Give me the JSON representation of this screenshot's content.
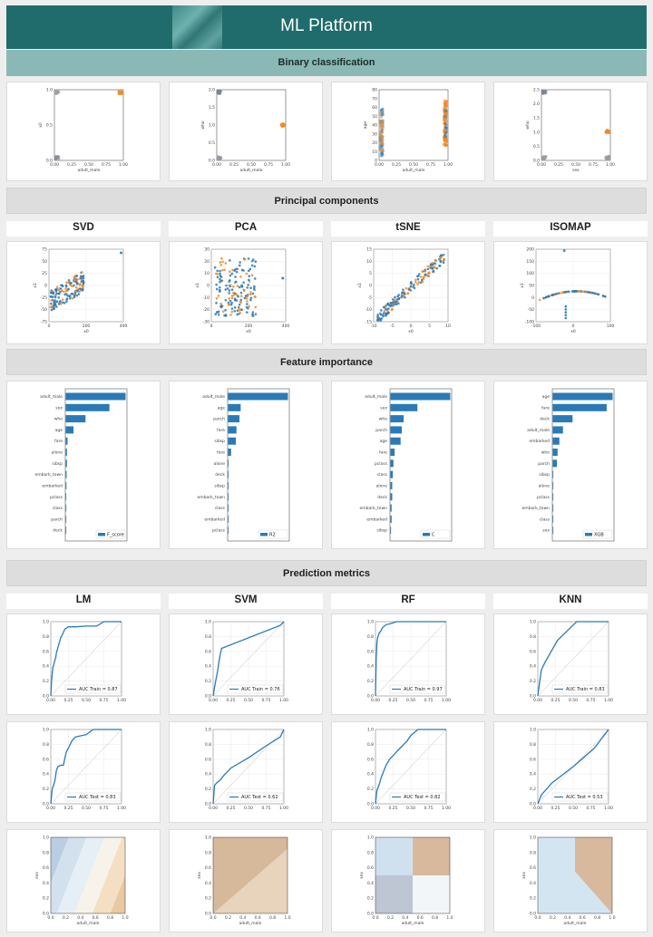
{
  "header": {
    "title": "ML Platform"
  },
  "sections": {
    "binary": "Binary classification",
    "pcs": "Principal components",
    "fi": "Feature importance",
    "pm": "Prediction metrics"
  },
  "pc_labels": [
    "SVD",
    "PCA",
    "tSNE",
    "ISOMAP"
  ],
  "model_labels": [
    "LM",
    "SVM",
    "RF",
    "KNN"
  ],
  "scatter_axes": [
    {
      "xlabel": "adult_male",
      "ylabel": "x0",
      "xticks": [
        "0.00",
        "0.25",
        "0.50",
        "0.75",
        "1.00"
      ],
      "yticks": [
        "0.0",
        "0.5",
        "1.0"
      ]
    },
    {
      "xlabel": "adult_male",
      "ylabel": "who",
      "xticks": [
        "0.00",
        "0.25",
        "0.50",
        "0.75",
        "1.00"
      ],
      "yticks": [
        "0.0",
        "0.5",
        "1.0",
        "1.5",
        "2.0"
      ]
    },
    {
      "xlabel": "adult_male",
      "ylabel": "age",
      "xticks": [
        "0.00",
        "0.25",
        "0.50",
        "0.75",
        "1.00"
      ],
      "yticks": [
        "0",
        "10",
        "20",
        "30",
        "40",
        "50",
        "60",
        "70",
        "80"
      ]
    },
    {
      "xlabel": "sex",
      "ylabel": "who",
      "xticks": [
        "0.00",
        "0.25",
        "0.50",
        "0.75",
        "1.00"
      ],
      "yticks": [
        "0.0",
        "0.5",
        "1.0",
        "1.5",
        "2.0",
        "2.5"
      ]
    }
  ],
  "pc_axes": [
    {
      "xlabel": "x0",
      "ylabel": "x1",
      "xticks": [
        "0",
        "200",
        "400"
      ],
      "yticks": [
        "-75",
        "-50",
        "-25",
        "0",
        "25",
        "50",
        "75"
      ]
    },
    {
      "xlabel": "x0",
      "ylabel": "x1",
      "xticks": [
        "0",
        "200",
        "400"
      ],
      "yticks": [
        "-30",
        "-20",
        "-10",
        "0",
        "10",
        "20",
        "30"
      ]
    },
    {
      "xlabel": "x0",
      "ylabel": "x1",
      "xticks": [
        "-10",
        "-5",
        "0",
        "5",
        "10"
      ],
      "yticks": [
        "-15",
        "-10",
        "-5",
        "0",
        "5",
        "10",
        "15"
      ]
    },
    {
      "xlabel": "x0",
      "ylabel": "x1",
      "xticks": [
        "-100",
        "0",
        "100"
      ],
      "yticks": [
        "-100",
        "-50",
        "0",
        "50",
        "100",
        "150",
        "200"
      ]
    }
  ],
  "roc_ticks": [
    "0.0",
    "0.2",
    "0.4",
    "0.6",
    "0.8",
    "1.0"
  ],
  "roc_axis_ticks": [
    "0.00",
    "0.25",
    "0.50",
    "0.75",
    "1.00"
  ],
  "boundary_axes": {
    "xlabel": "adult_male",
    "ylabel": "sex",
    "ticks": [
      "0.0",
      "0.2",
      "0.4",
      "0.6",
      "0.8",
      "1.0"
    ]
  },
  "chart_data": [
    {
      "type": "bar",
      "legend": "F_score",
      "categories": [
        "adult_male",
        "sex",
        "who",
        "age",
        "fare",
        "alone",
        "sibsp",
        "embark_town",
        "embarked",
        "pclass",
        "class",
        "parch",
        "deck"
      ],
      "values": [
        1.0,
        0.73,
        0.33,
        0.13,
        0.03,
        0.02,
        0.02,
        0.015,
        0.012,
        0.0,
        0.0,
        0.0,
        0.0
      ]
    },
    {
      "type": "bar",
      "legend": "R2",
      "categories": [
        "adult_male",
        "age",
        "parch",
        "fare",
        "sibsp",
        "fare",
        "alone",
        "deck",
        "sibsp",
        "embark_town",
        "class",
        "embarked",
        "pclass"
      ],
      "values": [
        1.0,
        0.21,
        0.19,
        0.14,
        0.13,
        0.05,
        0.0,
        0.0,
        0.0,
        0.0,
        0.0,
        0.0,
        0.0
      ]
    },
    {
      "type": "bar",
      "legend": "C",
      "categories": [
        "adult_male",
        "sex",
        "who",
        "parch",
        "age",
        "fare",
        "pclass",
        "class",
        "alone",
        "deck",
        "embark_town",
        "embarked",
        "sibsp"
      ],
      "values": [
        1.0,
        0.45,
        0.22,
        0.19,
        0.17,
        0.07,
        0.05,
        0.04,
        0.03,
        0.03,
        0.02,
        0.02,
        0.01
      ]
    },
    {
      "type": "bar",
      "legend": "XGB",
      "categories": [
        "age",
        "fare",
        "deck",
        "adult_male",
        "embarked",
        "who",
        "parch",
        "sibsp",
        "alone",
        "pclass",
        "embark_town",
        "class",
        "sex"
      ],
      "values": [
        1.0,
        0.9,
        0.33,
        0.17,
        0.11,
        0.08,
        0.07,
        0.0,
        0.0,
        0.0,
        0.0,
        0.0,
        0.0
      ]
    },
    {
      "type": "line",
      "name": "LM train",
      "legend": "AUC Train = 0.87",
      "x": [
        0,
        0.01,
        0.02,
        0.03,
        0.05,
        0.07,
        0.08,
        0.1,
        0.12,
        0.14,
        0.16,
        0.18,
        0.2,
        0.25,
        0.35,
        0.5,
        0.65,
        0.75,
        1.0
      ],
      "y": [
        0,
        0.2,
        0.3,
        0.38,
        0.45,
        0.52,
        0.58,
        0.65,
        0.72,
        0.78,
        0.82,
        0.86,
        0.9,
        0.93,
        0.93,
        0.94,
        0.94,
        1.0,
        1.0
      ]
    },
    {
      "type": "line",
      "name": "SVM train",
      "legend": "AUC Train = 0.76",
      "x": [
        0,
        0.02,
        0.04,
        0.06,
        0.08,
        0.1,
        0.12,
        0.95,
        1.0
      ],
      "y": [
        0,
        0.12,
        0.22,
        0.32,
        0.44,
        0.56,
        0.64,
        0.95,
        1.0
      ]
    },
    {
      "type": "line",
      "name": "RF train",
      "legend": "AUC Train = 0.97",
      "x": [
        0,
        0.01,
        0.02,
        0.03,
        0.05,
        0.08,
        0.1,
        0.15,
        0.2,
        0.3,
        0.5,
        1.0
      ],
      "y": [
        0,
        0.5,
        0.72,
        0.78,
        0.84,
        0.88,
        0.92,
        0.96,
        0.97,
        1.0,
        1.0,
        1.0
      ]
    },
    {
      "type": "line",
      "name": "KNN train",
      "legend": "AUC Train = 0.83",
      "x": [
        0,
        0.02,
        0.05,
        0.1,
        0.28,
        0.55,
        0.75,
        0.92,
        1.0
      ],
      "y": [
        0,
        0.15,
        0.35,
        0.45,
        0.75,
        1.0,
        1.0,
        1.0,
        1.0
      ]
    },
    {
      "type": "line",
      "name": "LM test",
      "legend": "AUC Test = 0.83",
      "x": [
        0,
        0.02,
        0.04,
        0.06,
        0.08,
        0.1,
        0.14,
        0.18,
        0.2,
        0.22,
        0.25,
        0.3,
        0.35,
        0.5,
        0.6,
        1.0
      ],
      "y": [
        0,
        0.2,
        0.25,
        0.32,
        0.45,
        0.5,
        0.52,
        0.52,
        0.62,
        0.7,
        0.75,
        0.85,
        0.9,
        0.93,
        1.0,
        1.0
      ]
    },
    {
      "type": "line",
      "name": "SVM test",
      "legend": "AUC Test = 0.62",
      "x": [
        0,
        0.02,
        0.05,
        0.1,
        0.15,
        0.25,
        0.5,
        0.75,
        0.95,
        1.0
      ],
      "y": [
        0,
        0.25,
        0.28,
        0.32,
        0.38,
        0.48,
        0.62,
        0.78,
        0.9,
        1.0
      ]
    },
    {
      "type": "line",
      "name": "RF test",
      "legend": "AUC Test = 0.82",
      "x": [
        0,
        0.02,
        0.05,
        0.08,
        0.12,
        0.15,
        0.2,
        0.25,
        0.3,
        0.35,
        0.4,
        0.45,
        0.5,
        0.6,
        0.8,
        1.0
      ],
      "y": [
        0,
        0.18,
        0.25,
        0.35,
        0.45,
        0.52,
        0.6,
        0.65,
        0.7,
        0.75,
        0.8,
        0.85,
        0.92,
        1.0,
        1.0,
        1.0
      ]
    },
    {
      "type": "line",
      "name": "KNN test",
      "legend": "AUC Test = 0.53",
      "x": [
        0,
        0.05,
        0.2,
        0.5,
        0.8,
        1.0
      ],
      "y": [
        0,
        0.12,
        0.28,
        0.5,
        0.75,
        1.0
      ]
    }
  ],
  "colors": {
    "header": "#206b6b",
    "band_teal": "#8ab9b5",
    "blue": "#2a7ab8",
    "orange": "#f08a24"
  }
}
